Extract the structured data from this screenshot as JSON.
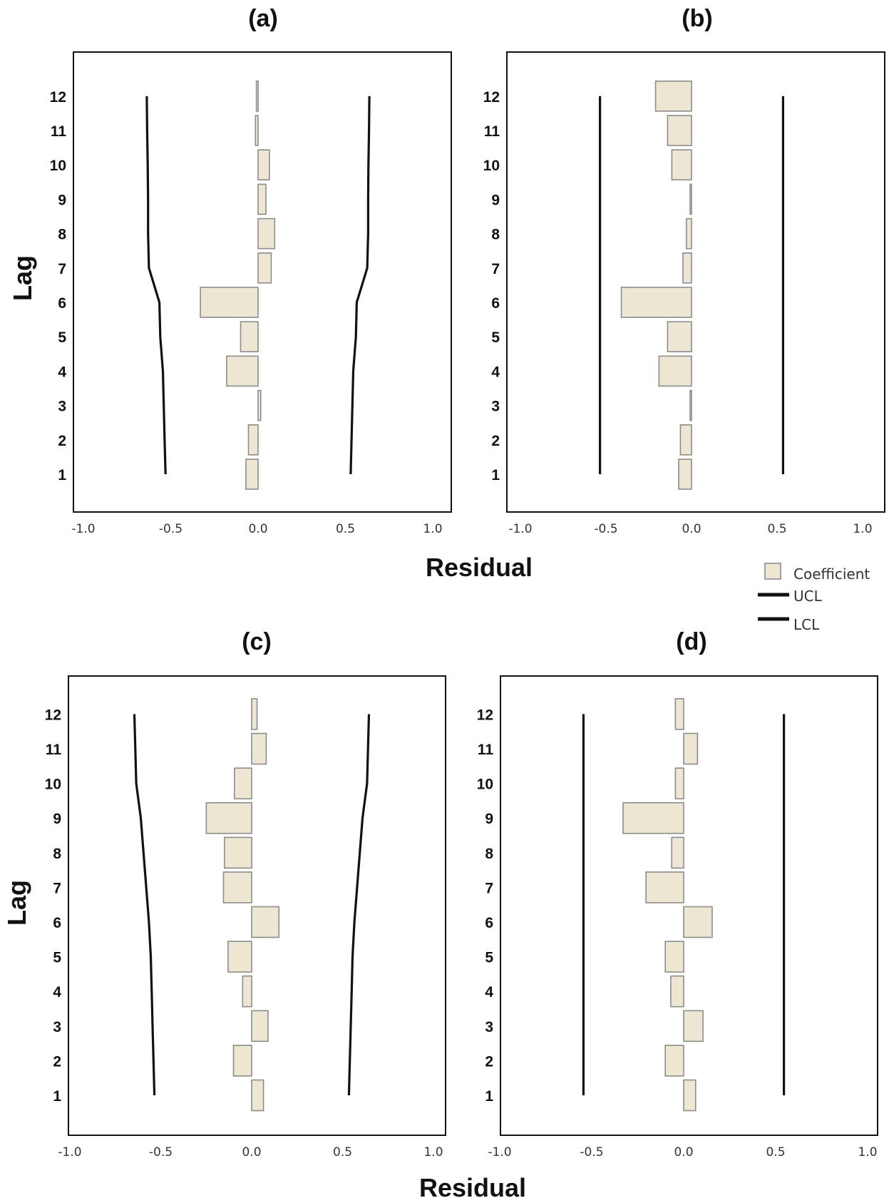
{
  "figure": {
    "xlabel": "Residual",
    "ylabel": "Lag",
    "legend": {
      "coefficient": "Coefficient",
      "ucl": "UCL",
      "lcl": "LCL"
    },
    "colors": {
      "bar_fill": "#ede6d2",
      "bar_stroke": "#8c8c8c",
      "limit_line": "#111111"
    }
  },
  "chart_data": [
    {
      "type": "bar",
      "orientation": "horizontal",
      "title": "(a)",
      "xlabel": "Residual",
      "ylabel": "Lag",
      "xlim": [
        -1.0,
        1.0
      ],
      "xticks": [
        -1.0,
        -0.5,
        0.0,
        0.5,
        1.0
      ],
      "xtick_labels": [
        "-1.0",
        "-0.5",
        "0.0",
        "0.5",
        "1.0"
      ],
      "categories": [
        "1",
        "2",
        "3",
        "4",
        "5",
        "6",
        "7",
        "8",
        "9",
        "10",
        "11",
        "12"
      ],
      "series": [
        {
          "name": "Coefficient",
          "values": [
            -0.07,
            -0.055,
            0.015,
            -0.18,
            -0.1,
            -0.33,
            0.075,
            0.095,
            0.045,
            0.065,
            -0.015,
            -0.01
          ]
        },
        {
          "name": "UCL",
          "values": [
            0.53,
            0.535,
            0.54,
            0.545,
            0.56,
            0.565,
            0.625,
            0.63,
            0.63,
            0.632,
            0.635,
            0.637
          ]
        },
        {
          "name": "LCL",
          "values": [
            -0.53,
            -0.535,
            -0.54,
            -0.545,
            -0.56,
            -0.565,
            -0.625,
            -0.63,
            -0.63,
            -0.632,
            -0.635,
            -0.637
          ]
        }
      ]
    },
    {
      "type": "bar",
      "orientation": "horizontal",
      "title": "(b)",
      "xlabel": "Residual",
      "ylabel": "Lag",
      "xlim": [
        -1.0,
        1.0
      ],
      "xticks": [
        -1.0,
        -0.5,
        0.0,
        0.5,
        1.0
      ],
      "xtick_labels": [
        "-1.0",
        "-0.5",
        "0.0",
        "0.5",
        "1.0"
      ],
      "categories": [
        "1",
        "2",
        "3",
        "4",
        "5",
        "6",
        "7",
        "8",
        "9",
        "10",
        "11",
        "12"
      ],
      "series": [
        {
          "name": "Coefficient",
          "values": [
            -0.075,
            -0.065,
            -0.005,
            -0.19,
            -0.14,
            -0.41,
            -0.05,
            -0.03,
            -0.008,
            -0.115,
            -0.14,
            -0.21
          ]
        },
        {
          "name": "UCL",
          "values": [
            0.535,
            0.535,
            0.535,
            0.535,
            0.535,
            0.535,
            0.535,
            0.535,
            0.535,
            0.535,
            0.535,
            0.535
          ]
        },
        {
          "name": "LCL",
          "values": [
            -0.535,
            -0.535,
            -0.535,
            -0.535,
            -0.535,
            -0.535,
            -0.535,
            -0.535,
            -0.535,
            -0.535,
            -0.535,
            -0.535
          ]
        }
      ]
    },
    {
      "type": "bar",
      "orientation": "horizontal",
      "title": "(c)",
      "xlabel": "Residual",
      "ylabel": "Lag",
      "xlim": [
        -1.0,
        1.0
      ],
      "xticks": [
        -1.0,
        -0.5,
        0.0,
        0.5,
        1.0
      ],
      "xtick_labels": [
        "-1.0",
        "-0.5",
        "0.0",
        "0.5",
        "1.0"
      ],
      "categories": [
        "1",
        "2",
        "3",
        "4",
        "5",
        "6",
        "7",
        "8",
        "9",
        "10",
        "11",
        "12"
      ],
      "series": [
        {
          "name": "Coefficient",
          "values": [
            0.065,
            -0.1,
            0.09,
            -0.05,
            -0.13,
            0.15,
            -0.155,
            -0.15,
            -0.25,
            -0.095,
            0.08,
            0.03
          ]
        },
        {
          "name": "UCL",
          "values": [
            0.535,
            0.54,
            0.545,
            0.55,
            0.555,
            0.565,
            0.58,
            0.595,
            0.61,
            0.635,
            0.64,
            0.645
          ]
        },
        {
          "name": "LCL",
          "values": [
            -0.535,
            -0.54,
            -0.545,
            -0.55,
            -0.555,
            -0.565,
            -0.58,
            -0.595,
            -0.61,
            -0.635,
            -0.64,
            -0.645
          ]
        }
      ]
    },
    {
      "type": "bar",
      "orientation": "horizontal",
      "title": "(d)",
      "xlabel": "Residual",
      "ylabel": "Lag",
      "xlim": [
        -1.0,
        1.0
      ],
      "xticks": [
        -1.0,
        -0.5,
        0.0,
        0.5,
        1.0
      ],
      "xtick_labels": [
        "-1.0",
        "-0.5",
        "0.0",
        "0.5",
        "1.0"
      ],
      "categories": [
        "1",
        "2",
        "3",
        "4",
        "5",
        "6",
        "7",
        "8",
        "9",
        "10",
        "11",
        "12"
      ],
      "series": [
        {
          "name": "Coefficient",
          "values": [
            0.065,
            -0.1,
            0.105,
            -0.07,
            -0.1,
            0.155,
            -0.205,
            -0.065,
            -0.33,
            -0.045,
            0.075,
            -0.045
          ]
        },
        {
          "name": "UCL",
          "values": [
            0.545,
            0.545,
            0.545,
            0.545,
            0.545,
            0.545,
            0.545,
            0.545,
            0.545,
            0.545,
            0.545,
            0.545
          ]
        },
        {
          "name": "LCL",
          "values": [
            -0.545,
            -0.545,
            -0.545,
            -0.545,
            -0.545,
            -0.545,
            -0.545,
            -0.545,
            -0.545,
            -0.545,
            -0.545,
            -0.545
          ]
        }
      ]
    }
  ]
}
